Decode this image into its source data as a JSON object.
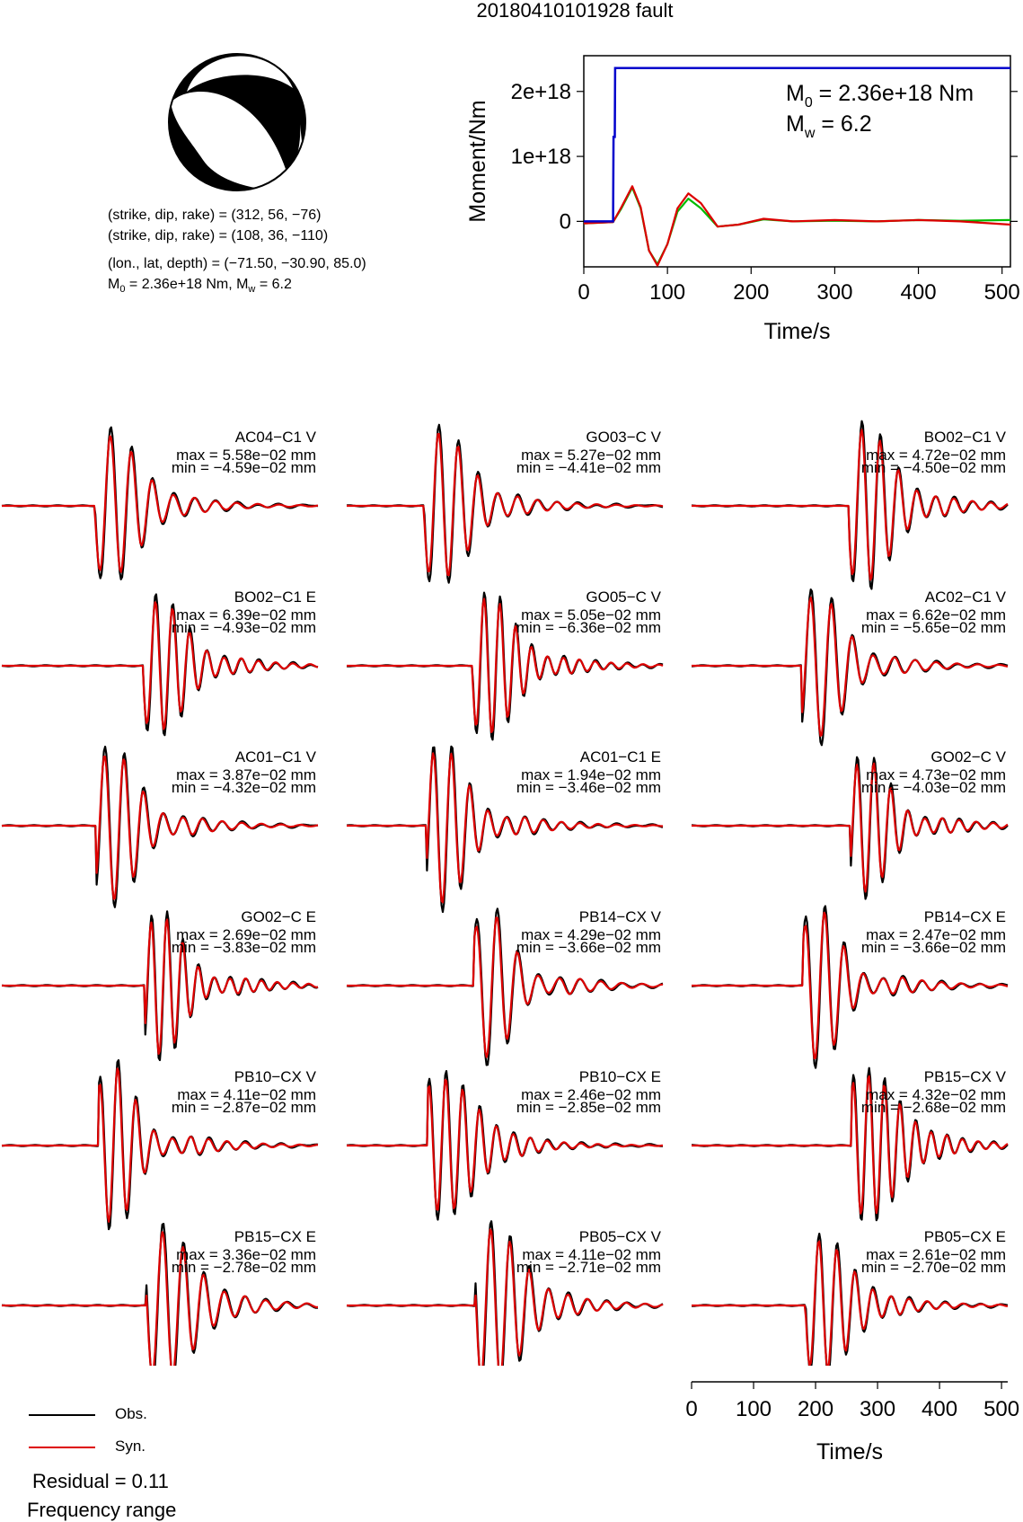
{
  "figure": {
    "title": "20180410101928 fault"
  },
  "focal_mechanism": {
    "plane1": "(strike, dip, rake) = (312, 56, −76)",
    "plane2": "(strike, dip, rake) = (108, 36, −110)",
    "location": "(lon., lat, depth) = (−71.50, −30.90, 85.0)",
    "moment_prefix": "M",
    "moment_sub": "0",
    "moment_mid": " = 2.36e+18 Nm, M",
    "moment_sub2": "w",
    "moment_suffix": " = 6.2",
    "colors": {
      "fill": "#000000",
      "background": "#ffffff"
    }
  },
  "legend": {
    "obs_label": "Obs.",
    "syn_label": "Syn.",
    "obs_color": "#000000",
    "syn_color": "#dd0000"
  },
  "summary": {
    "residual": "Residual = 0.11",
    "frequency_range": "Frequency range"
  },
  "chart_data": [
    {
      "type": "line",
      "name": "source-time-function",
      "title": "",
      "xlabel": "Time/s",
      "ylabel": "Moment/Nm",
      "xlim": [
        0,
        510
      ],
      "ylim": [
        -7e+17,
        2.55e+18
      ],
      "xticks": [
        0,
        100,
        200,
        300,
        400,
        500
      ],
      "xtick_labels": [
        "0",
        "100",
        "200",
        "300",
        "400",
        "500"
      ],
      "yticks": [
        0,
        1e+18,
        2e+18
      ],
      "ytick_labels": [
        "0",
        "1e+18",
        "2e+18"
      ],
      "annotation_m0": "= 2.36e+18 Nm",
      "annotation_mw": "= 6.2",
      "annotation_m0_symbol": "M",
      "annotation_m0_sub": "0",
      "annotation_mw_symbol": "M",
      "annotation_mw_sub": "w",
      "cumulative_moment": {
        "color": "#0000cc",
        "x": [
          0,
          35,
          35.5,
          37,
          37.5,
          510
        ],
        "y": [
          0,
          0,
          1.3e+18,
          1.3e+18,
          2.36e+18,
          2.36e+18
        ]
      },
      "rate_curves": [
        {
          "color": "#00bb00",
          "x": [
            0,
            35,
            45,
            58,
            68,
            78,
            88,
            100,
            112,
            125,
            140,
            160,
            185,
            215,
            250,
            300,
            350,
            400,
            450,
            510
          ],
          "y": [
            -3e+16,
            -1e+16,
            2e+17,
            5.2e+17,
            2e+17,
            -4.5e+17,
            -6.6e+17,
            -3.5e+17,
            1.5e+17,
            3.5e+17,
            2e+17,
            -8e+16,
            -5e+16,
            3e+16,
            0.0,
            1e+16,
            0.0,
            2e+16,
            1e+16,
            2e+16
          ]
        },
        {
          "color": "#dd0000",
          "x": [
            0,
            35,
            45,
            58,
            68,
            78,
            88,
            100,
            112,
            125,
            140,
            160,
            185,
            215,
            250,
            300,
            350,
            400,
            450,
            510
          ],
          "y": [
            -3e+16,
            -1e+16,
            2.2e+17,
            5.4e+17,
            2.2e+17,
            -4.5e+17,
            -6.8e+17,
            -3.5e+17,
            2e+17,
            4.3e+17,
            2.8e+17,
            -8e+16,
            -5e+16,
            4e+16,
            0.0,
            2e+16,
            0.0,
            2e+16,
            0.0,
            -5e+16
          ]
        }
      ]
    },
    {
      "type": "line",
      "name": "station-waveforms",
      "title": "",
      "xlabel": "Time/s",
      "ylabel": "",
      "xlim": [
        0,
        510
      ],
      "xticks": [
        0,
        100,
        200,
        300,
        400,
        500
      ],
      "xtick_labels": [
        "0",
        "100",
        "200",
        "300",
        "400",
        "500"
      ],
      "series_names": [
        "Obs.",
        "Syn."
      ],
      "stations": [
        {
          "label": "AC04−C1 V",
          "max": "max = 5.58e−02 mm",
          "min": "min = −4.59e−02 mm"
        },
        {
          "label": "GO03−C V",
          "max": "max = 5.27e−02 mm",
          "min": "min = −4.41e−02 mm"
        },
        {
          "label": "BO02−C1 V",
          "max": "max = 4.72e−02 mm",
          "min": "min = −4.50e−02 mm"
        },
        {
          "label": "BO02−C1 E",
          "max": "max = 6.39e−02 mm",
          "min": "min = −4.93e−02 mm"
        },
        {
          "label": "GO05−C V",
          "max": "max = 5.05e−02 mm",
          "min": "min = −6.36e−02 mm"
        },
        {
          "label": "AC02−C1 V",
          "max": "max = 6.62e−02 mm",
          "min": "min = −5.65e−02 mm"
        },
        {
          "label": "AC01−C1 V",
          "max": "max = 3.87e−02 mm",
          "min": "min = −4.32e−02 mm"
        },
        {
          "label": "AC01−C1 E",
          "max": "max = 1.94e−02 mm",
          "min": "min = −3.46e−02 mm"
        },
        {
          "label": "GO02−C V",
          "max": "max = 4.73e−02 mm",
          "min": "min = −4.03e−02 mm"
        },
        {
          "label": "GO02−C E",
          "max": "max = 2.69e−02 mm",
          "min": "min = −3.83e−02 mm"
        },
        {
          "label": "PB14−CX V",
          "max": "max = 4.29e−02 mm",
          "min": "min = −3.66e−02 mm"
        },
        {
          "label": "PB14−CX E",
          "max": "max = 2.47e−02 mm",
          "min": "min = −3.66e−02 mm"
        },
        {
          "label": "PB10−CX V",
          "max": "max = 4.11e−02 mm",
          "min": "min = −2.87e−02 mm"
        },
        {
          "label": "PB10−CX E",
          "max": "max = 2.46e−02 mm",
          "min": "min = −2.85e−02 mm"
        },
        {
          "label": "PB15−CX V",
          "max": "max = 4.32e−02 mm",
          "min": "min = −2.68e−02 mm"
        },
        {
          "label": "PB15−CX E",
          "max": "max = 3.36e−02 mm",
          "min": "min = −2.78e−02 mm"
        },
        {
          "label": "PB05−CX V",
          "max": "max = 4.11e−02 mm",
          "min": "min = −2.71e−02 mm"
        },
        {
          "label": "PB05−CX E",
          "max": "max = 2.61e−02 mm",
          "min": "min = −2.70e−02 mm"
        }
      ]
    }
  ]
}
